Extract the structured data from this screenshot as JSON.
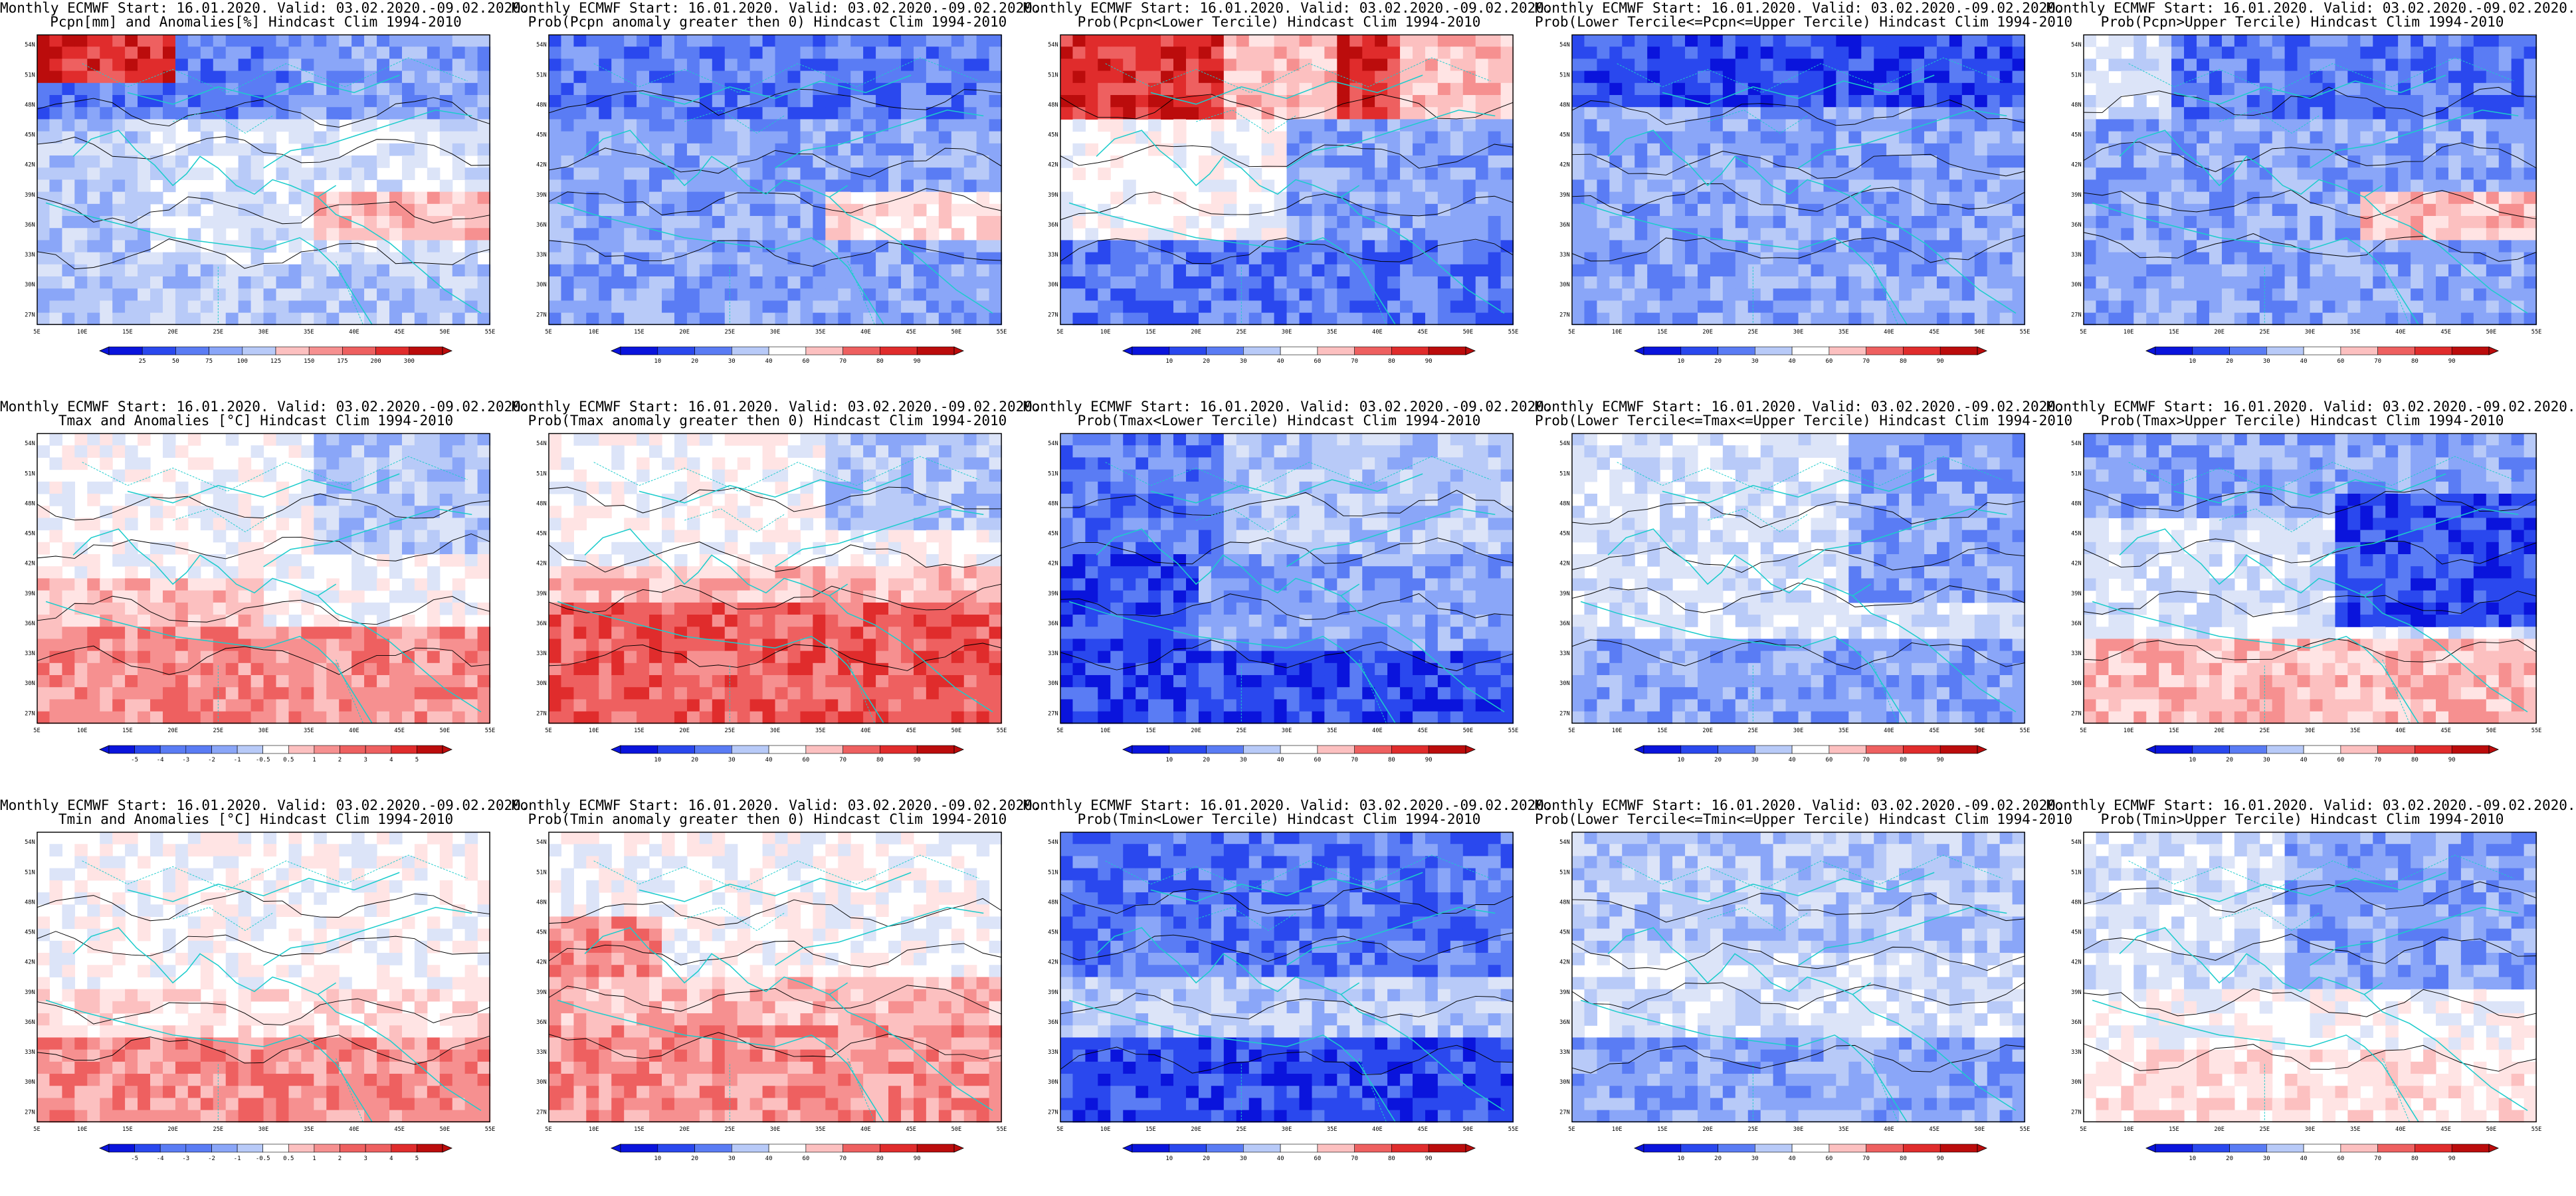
{
  "title_line1": "Monthly ECMWF Start: 16.01.2020. Valid: 03.02.2020.-09.02.2020.",
  "lon_labels": [
    "5E",
    "10E",
    "15E",
    "20E",
    "25E",
    "30E",
    "35E",
    "40E",
    "45E",
    "50E",
    "55E"
  ],
  "lat_labels": [
    "54N",
    "51N",
    "48N",
    "45N",
    "42N",
    "39N",
    "36N",
    "33N",
    "30N",
    "27N"
  ],
  "colors": {
    "neg": [
      "#0a14dc",
      "#2a48ee",
      "#5a7cf4",
      "#8aa6f8",
      "#b8caf8",
      "#dce4f8"
    ],
    "pos": [
      "#ffe4e4",
      "#fcc0c0",
      "#f69090",
      "#ee6060",
      "#e02c2c",
      "#bb0c0c"
    ],
    "coast": "#1ccccc",
    "contour": "#000000"
  },
  "scales": {
    "pcpn_anom": [
      "25",
      "50",
      "75",
      "100",
      "125",
      "150",
      "175",
      "200",
      "300"
    ],
    "prob": [
      "10",
      "20",
      "30",
      "40",
      "60",
      "70",
      "80",
      "90"
    ],
    "temp_anom": [
      "-5",
      "-4",
      "-3",
      "-2",
      "-1",
      "-0.5",
      "0.5",
      "1",
      "2",
      "3",
      "4",
      "5"
    ]
  },
  "panels": [
    {
      "title2": "Pcpn[mm] and Anomalies[%] Hindcast Clim 1994-2010",
      "scale": "pcpn_anom",
      "pattern": "pcpn_anom"
    },
    {
      "title2": "Prob(Pcpn anomaly greater then 0) Hindcast Clim 1994-2010",
      "scale": "prob",
      "pattern": "pcpn_prob"
    },
    {
      "title2": "Prob(Pcpn<Lower Tercile) Hindcast Clim 1994-2010",
      "scale": "prob",
      "pattern": "pcpn_low"
    },
    {
      "title2": "Prob(Lower Tercile<=Pcpn<=Upper Tercile) Hindcast Clim 1994-2010",
      "scale": "prob",
      "pattern": "pcpn_mid"
    },
    {
      "title2": "Prob(Pcpn>Upper Tercile) Hindcast Clim 1994-2010",
      "scale": "prob",
      "pattern": "pcpn_up"
    },
    {
      "title2": "Tmax and Anomalies [°C] Hindcast Clim 1994-2010",
      "scale": "temp_anom",
      "pattern": "tmax_anom"
    },
    {
      "title2": "Prob(Tmax anomaly greater then 0) Hindcast Clim 1994-2010",
      "scale": "prob",
      "pattern": "tmax_prob"
    },
    {
      "title2": "Prob(Tmax<Lower Tercile) Hindcast Clim 1994-2010",
      "scale": "prob",
      "pattern": "tmax_low"
    },
    {
      "title2": "Prob(Lower Tercile<=Tmax<=Upper Tercile) Hindcast Clim 1994-2010",
      "scale": "prob",
      "pattern": "tmax_mid"
    },
    {
      "title2": "Prob(Tmax>Upper Tercile) Hindcast Clim 1994-2010",
      "scale": "prob",
      "pattern": "tmax_up"
    },
    {
      "title2": "Tmin and Anomalies [°C] Hindcast Clim 1994-2010",
      "scale": "temp_anom",
      "pattern": "tmin_anom"
    },
    {
      "title2": "Prob(Tmin anomaly greater then 0) Hindcast Clim 1994-2010",
      "scale": "prob",
      "pattern": "tmin_prob"
    },
    {
      "title2": "Prob(Tmin<Lower Tercile) Hindcast Clim 1994-2010",
      "scale": "prob",
      "pattern": "tmin_low"
    },
    {
      "title2": "Prob(Lower Tercile<=Tmin<=Upper Tercile) Hindcast Clim 1994-2010",
      "scale": "prob",
      "pattern": "tmin_mid"
    },
    {
      "title2": "Prob(Tmin>Upper Tercile) Hindcast Clim 1994-2010",
      "scale": "prob",
      "pattern": "tmin_up"
    }
  ]
}
